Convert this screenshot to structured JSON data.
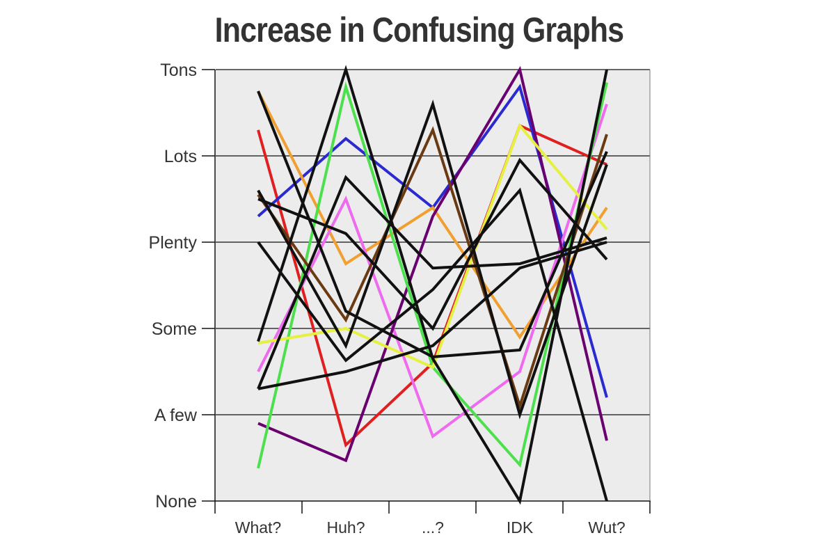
{
  "chart_data": {
    "type": "line",
    "title": "Increase in Confusing Graphs",
    "categories": [
      "What?",
      "Huh?",
      "...?",
      "IDK",
      "Wut?"
    ],
    "y_levels": [
      "None",
      "A few",
      "Some",
      "Plenty",
      "Lots",
      "Tons"
    ],
    "ylim": [
      0,
      5
    ],
    "grid": true,
    "background": "#ececec",
    "series": [
      {
        "color": "#e02020",
        "values": [
          4.3,
          0.65,
          1.6,
          4.35,
          3.9
        ]
      },
      {
        "color": "#2a2ad0",
        "values": [
          3.3,
          4.2,
          3.4,
          4.8,
          1.2
        ]
      },
      {
        "color": "#f0a030",
        "values": [
          4.75,
          2.75,
          3.4,
          1.9,
          3.4
        ]
      },
      {
        "color": "#ee6aee",
        "values": [
          1.5,
          3.5,
          0.75,
          1.5,
          4.6
        ]
      },
      {
        "color": "#6a0070",
        "values": [
          0.9,
          0.47,
          3.3,
          5.0,
          0.7
        ]
      },
      {
        "color": "#4de04d",
        "values": [
          0.38,
          4.8,
          1.55,
          0.42,
          4.85
        ]
      },
      {
        "color": "#e6f040",
        "values": [
          1.83,
          2.0,
          1.55,
          4.35,
          3.15
        ]
      },
      {
        "color": "#6a3a12",
        "values": [
          3.55,
          2.1,
          4.3,
          1.1,
          4.25
        ]
      },
      {
        "color": "#111111",
        "values": [
          4.75,
          2.2,
          1.67,
          1.75,
          4.05
        ]
      },
      {
        "color": "#111111",
        "values": [
          1.85,
          5.0,
          1.65,
          0.0,
          5.0
        ]
      },
      {
        "color": "#111111",
        "values": [
          1.3,
          1.5,
          1.8,
          2.7,
          3.0
        ]
      },
      {
        "color": "#111111",
        "values": [
          3.0,
          1.63,
          2.45,
          3.6,
          0.0
        ]
      },
      {
        "color": "#111111",
        "values": [
          3.6,
          1.8,
          4.6,
          1.0,
          3.9
        ]
      },
      {
        "color": "#111111",
        "values": [
          1.3,
          3.75,
          2.7,
          2.75,
          3.05
        ]
      },
      {
        "color": "#111111",
        "values": [
          3.5,
          3.1,
          2.0,
          3.95,
          2.8
        ]
      }
    ]
  }
}
